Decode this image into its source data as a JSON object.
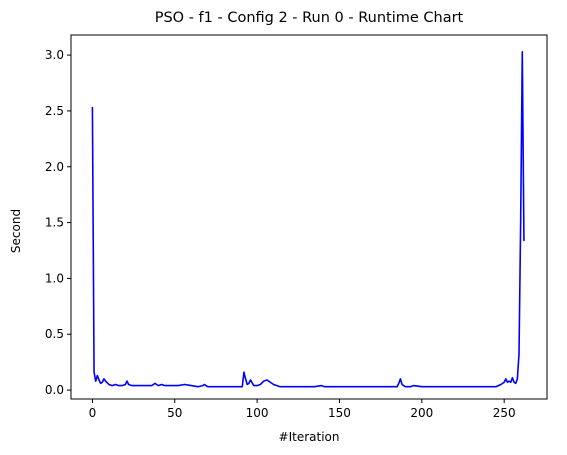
{
  "chart_data": {
    "type": "line",
    "title": "PSO - f1 - Config 2 - Run 0 - Runtime Chart",
    "xlabel": "#Iteration",
    "ylabel": "Second",
    "xlim": [
      -13,
      276
    ],
    "ylim": [
      -0.08,
      3.18
    ],
    "x_ticks": [
      0,
      50,
      100,
      150,
      200,
      250
    ],
    "x_tick_labels": [
      "0",
      "50",
      "100",
      "150",
      "200",
      "250"
    ],
    "y_ticks": [
      0.0,
      0.5,
      1.0,
      1.5,
      2.0,
      2.5,
      3.0
    ],
    "y_tick_labels": [
      "0.0",
      "0.5",
      "1.0",
      "1.5",
      "2.0",
      "2.5",
      "3.0"
    ],
    "grid": false,
    "series": [
      {
        "color": "#0000ff",
        "x": [
          0,
          1,
          2,
          3,
          4,
          5,
          6,
          7,
          8,
          10,
          12,
          14,
          16,
          18,
          20,
          21,
          22,
          24,
          28,
          32,
          36,
          38,
          40,
          42,
          44,
          48,
          52,
          56,
          60,
          64,
          67,
          68,
          70,
          75,
          80,
          85,
          90,
          91,
          92,
          93,
          94,
          95,
          96,
          98,
          100,
          102,
          104,
          106,
          108,
          110,
          112,
          114,
          116,
          118,
          120,
          125,
          130,
          135,
          139,
          141,
          145,
          150,
          160,
          170,
          180,
          185,
          186,
          187,
          188,
          190,
          193,
          195,
          200,
          210,
          220,
          230,
          235,
          240,
          245,
          248,
          250,
          251,
          252,
          253,
          254,
          255,
          256,
          257,
          258,
          259,
          260,
          261,
          262
        ],
        "y": [
          2.53,
          0.16,
          0.08,
          0.13,
          0.09,
          0.06,
          0.07,
          0.1,
          0.08,
          0.05,
          0.04,
          0.05,
          0.04,
          0.04,
          0.05,
          0.08,
          0.05,
          0.04,
          0.04,
          0.04,
          0.04,
          0.06,
          0.04,
          0.05,
          0.04,
          0.04,
          0.04,
          0.05,
          0.04,
          0.03,
          0.04,
          0.05,
          0.03,
          0.03,
          0.03,
          0.03,
          0.03,
          0.03,
          0.16,
          0.1,
          0.05,
          0.06,
          0.09,
          0.04,
          0.04,
          0.05,
          0.08,
          0.09,
          0.07,
          0.05,
          0.04,
          0.03,
          0.03,
          0.03,
          0.03,
          0.03,
          0.03,
          0.03,
          0.04,
          0.03,
          0.03,
          0.03,
          0.03,
          0.03,
          0.03,
          0.03,
          0.06,
          0.1,
          0.05,
          0.03,
          0.03,
          0.04,
          0.03,
          0.03,
          0.03,
          0.03,
          0.03,
          0.03,
          0.03,
          0.05,
          0.07,
          0.1,
          0.07,
          0.08,
          0.07,
          0.11,
          0.07,
          0.06,
          0.1,
          0.32,
          1.5,
          3.03,
          1.34
        ]
      }
    ]
  }
}
